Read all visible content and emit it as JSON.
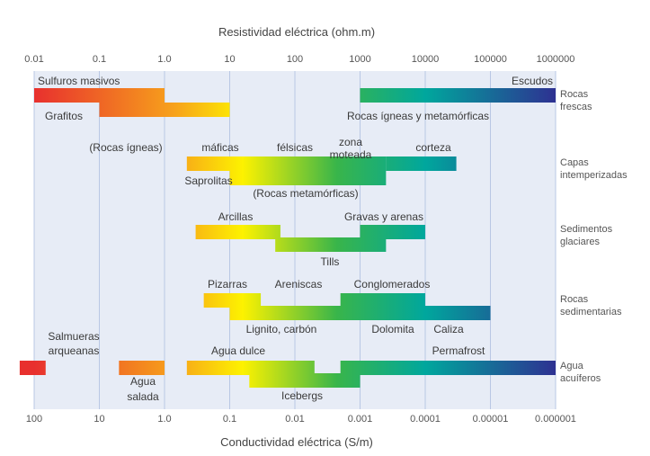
{
  "chart_data": {
    "type": "range-bar",
    "top_axis": {
      "title": "Resistividad eléctrica (ohm.m)",
      "ticks": [
        "0.01",
        "0.1",
        "1.0",
        "10",
        "100",
        "1000",
        "10000",
        "100000",
        "1000000"
      ]
    },
    "bottom_axis": {
      "title": "Conductividad eléctrica (S/m)",
      "ticks": [
        "100",
        "10",
        "1.0",
        "0.1",
        "0.01",
        "0.001",
        "0.0001",
        "0.00001",
        "0.000001"
      ]
    },
    "scale": "log",
    "groups": [
      {
        "label_lines": [
          "Rocas",
          "frescas"
        ],
        "bars": [
          {
            "name": "Sulfuros masivos",
            "from": 0.01,
            "to": 1.0
          },
          {
            "name": "Grafitos",
            "from": 0.1,
            "to": 10
          },
          {
            "name": "Escudos / Rocas ígneas y metamórficas",
            "from": 1000,
            "to": 1000000
          }
        ],
        "labels": [
          "Sulfuros masivos",
          "Grafitos",
          "Escudos",
          "Rocas ígneas y metamórficas"
        ]
      },
      {
        "label_lines": [
          "Capas",
          "intemperizadas"
        ],
        "bars": [
          {
            "name": "Saprolitas (Rocas ígneas)",
            "from": 2.2,
            "to": 2500
          },
          {
            "name": "Saprolitas (Rocas metamórficas)",
            "from": 10,
            "to": 2500
          },
          {
            "name": "corteza",
            "from": 2500,
            "to": 30000
          }
        ],
        "labels": [
          "(Rocas ígneas)",
          "máficas",
          "félsicas",
          "zona",
          "moteada",
          "corteza",
          "Saprolitas",
          "(Rocas metamórficas)"
        ]
      },
      {
        "label_lines": [
          "Sedimentos",
          "glaciares"
        ],
        "bars": [
          {
            "name": "Arcillas",
            "from": 3,
            "to": 60
          },
          {
            "name": "Tills",
            "from": 50,
            "to": 2500
          },
          {
            "name": "Gravas y arenas",
            "from": 1000,
            "to": 10000
          }
        ],
        "labels": [
          "Arcillas",
          "Gravas y arenas",
          "Tills"
        ]
      },
      {
        "label_lines": [
          "Rocas",
          "sedimentarias"
        ],
        "bars": [
          {
            "name": "Pizarras",
            "from": 4,
            "to": 30
          },
          {
            "name": "Areniscas",
            "from": 30,
            "to": 1000
          },
          {
            "name": "Lignito, carbón",
            "from": 10,
            "to": 500
          },
          {
            "name": "Conglomerados",
            "from": 500,
            "to": 10000
          },
          {
            "name": "Dolomita",
            "from": 1000,
            "to": 10000
          },
          {
            "name": "Caliza",
            "from": 10000,
            "to": 100000
          }
        ],
        "labels": [
          "Pizarras",
          "Areniscas",
          "Conglomerados",
          "Lignito, carbón",
          "Dolomita",
          "Caliza"
        ]
      },
      {
        "label_lines": [
          "Agua",
          "acuíferos"
        ],
        "bars": [
          {
            "name": "Salmueras arqueanas",
            "from": 0.006,
            "to": 0.015
          },
          {
            "name": "Agua salada",
            "from": 0.2,
            "to": 1.0
          },
          {
            "name": "Agua dulce",
            "from": 2.2,
            "to": 200
          },
          {
            "name": "Icebergs",
            "from": 20,
            "to": 1000
          },
          {
            "name": "Permafrost",
            "from": 500,
            "to": 1000000
          }
        ],
        "labels": [
          "Salmueras",
          "arqueanas",
          "Agua",
          "salada",
          "Agua dulce",
          "Icebergs",
          "Permafrost"
        ]
      }
    ],
    "colors": {
      "background": "#e7ecf6",
      "grid": "#b9c7e4",
      "gradient_low": "#e8302e",
      "gradient_mid1": "#f7a21b",
      "gradient_mid2": "#fdf200",
      "gradient_mid3": "#39b54a",
      "gradient_mid4": "#00a79d",
      "gradient_high": "#2e3192"
    }
  }
}
